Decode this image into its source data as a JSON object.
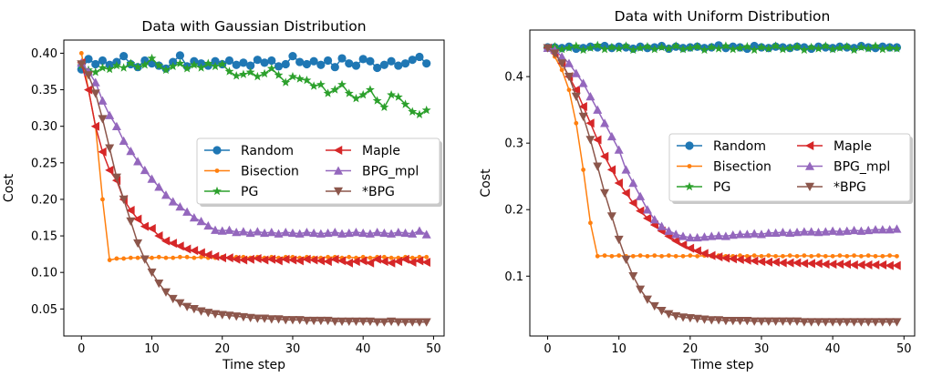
{
  "chart_data": [
    {
      "type": "line",
      "title": "Data with Gaussian Distribution",
      "xlabel": "Time step",
      "ylabel": "Cost",
      "xlim": [
        -2.5,
        51.5
      ],
      "ylim": [
        0.013,
        0.418
      ],
      "xticks": [
        0,
        10,
        20,
        30,
        40,
        50
      ],
      "yticks": [
        0.05,
        0.1,
        0.15,
        0.2,
        0.25,
        0.3,
        0.35,
        0.4
      ],
      "ytick_labels": [
        "0.05",
        "0.10",
        "0.15",
        "0.20",
        "0.25",
        "0.30",
        "0.35",
        "0.40"
      ],
      "legend_position": "center-right",
      "x": [
        0,
        1,
        2,
        3,
        4,
        5,
        6,
        7,
        8,
        9,
        10,
        11,
        12,
        13,
        14,
        15,
        16,
        17,
        18,
        19,
        20,
        21,
        22,
        23,
        24,
        25,
        26,
        27,
        28,
        29,
        30,
        31,
        32,
        33,
        34,
        35,
        36,
        37,
        38,
        39,
        40,
        41,
        42,
        43,
        44,
        45,
        46,
        47,
        48,
        49
      ],
      "series": [
        {
          "name": "Random",
          "color": "#1f77b4",
          "marker": "circle",
          "values": [
            0.378,
            0.392,
            0.385,
            0.39,
            0.384,
            0.388,
            0.396,
            0.385,
            0.381,
            0.39,
            0.386,
            0.383,
            0.379,
            0.388,
            0.397,
            0.382,
            0.389,
            0.386,
            0.383,
            0.389,
            0.385,
            0.39,
            0.384,
            0.387,
            0.383,
            0.391,
            0.387,
            0.39,
            0.382,
            0.385,
            0.396,
            0.388,
            0.385,
            0.389,
            0.384,
            0.39,
            0.381,
            0.393,
            0.386,
            0.383,
            0.392,
            0.389,
            0.38,
            0.384,
            0.389,
            0.383,
            0.386,
            0.391,
            0.395,
            0.386
          ]
        },
        {
          "name": "Bisection",
          "color": "#ff7f0e",
          "marker": "dot",
          "values": [
            0.4,
            0.35,
            0.3,
            0.2,
            0.117,
            0.119,
            0.119,
            0.12,
            0.12,
            0.12,
            0.12,
            0.121,
            0.12,
            0.12,
            0.121,
            0.121,
            0.12,
            0.121,
            0.12,
            0.12,
            0.121,
            0.12,
            0.121,
            0.121,
            0.12,
            0.121,
            0.12,
            0.121,
            0.12,
            0.121,
            0.121,
            0.12,
            0.121,
            0.12,
            0.12,
            0.121,
            0.121,
            0.12,
            0.121,
            0.12,
            0.121,
            0.12,
            0.121,
            0.121,
            0.12,
            0.12,
            0.121,
            0.12,
            0.121,
            0.121
          ]
        },
        {
          "name": "PG",
          "color": "#2ca02c",
          "marker": "star",
          "values": [
            0.383,
            0.377,
            0.374,
            0.38,
            0.378,
            0.383,
            0.38,
            0.386,
            0.381,
            0.384,
            0.393,
            0.383,
            0.377,
            0.382,
            0.386,
            0.379,
            0.384,
            0.38,
            0.386,
            0.382,
            0.385,
            0.375,
            0.369,
            0.371,
            0.374,
            0.368,
            0.372,
            0.379,
            0.37,
            0.36,
            0.368,
            0.365,
            0.363,
            0.355,
            0.357,
            0.345,
            0.35,
            0.357,
            0.345,
            0.338,
            0.343,
            0.35,
            0.335,
            0.326,
            0.343,
            0.34,
            0.33,
            0.32,
            0.316,
            0.322
          ]
        },
        {
          "name": "Maple",
          "color": "#d62728",
          "marker": "triangle-left",
          "values": [
            0.387,
            0.35,
            0.3,
            0.265,
            0.24,
            0.226,
            0.2,
            0.185,
            0.173,
            0.163,
            0.16,
            0.15,
            0.143,
            0.14,
            0.136,
            0.132,
            0.13,
            0.127,
            0.124,
            0.122,
            0.12,
            0.12,
            0.118,
            0.117,
            0.118,
            0.119,
            0.117,
            0.118,
            0.116,
            0.118,
            0.117,
            0.116,
            0.118,
            0.117,
            0.116,
            0.115,
            0.118,
            0.116,
            0.113,
            0.115,
            0.116,
            0.113,
            0.118,
            0.115,
            0.113,
            0.115,
            0.118,
            0.114,
            0.116,
            0.114
          ]
        },
        {
          "name": "BPG_mpl",
          "color": "#9467bd",
          "marker": "triangle-up",
          "values": [
            0.387,
            0.375,
            0.36,
            0.335,
            0.315,
            0.3,
            0.28,
            0.266,
            0.252,
            0.24,
            0.228,
            0.217,
            0.206,
            0.197,
            0.19,
            0.183,
            0.175,
            0.17,
            0.164,
            0.158,
            0.157,
            0.158,
            0.155,
            0.156,
            0.154,
            0.156,
            0.154,
            0.155,
            0.153,
            0.155,
            0.154,
            0.153,
            0.155,
            0.154,
            0.153,
            0.154,
            0.155,
            0.153,
            0.154,
            0.155,
            0.154,
            0.153,
            0.155,
            0.154,
            0.153,
            0.155,
            0.154,
            0.153,
            0.157,
            0.152
          ]
        },
        {
          "name": "*BPG",
          "color": "#8c564b",
          "marker": "triangle-down",
          "values": [
            0.385,
            0.37,
            0.345,
            0.31,
            0.27,
            0.23,
            0.2,
            0.17,
            0.14,
            0.118,
            0.1,
            0.085,
            0.073,
            0.064,
            0.058,
            0.053,
            0.05,
            0.047,
            0.045,
            0.043,
            0.042,
            0.041,
            0.04,
            0.039,
            0.038,
            0.037,
            0.037,
            0.036,
            0.036,
            0.035,
            0.035,
            0.035,
            0.034,
            0.034,
            0.034,
            0.034,
            0.033,
            0.033,
            0.033,
            0.033,
            0.033,
            0.033,
            0.032,
            0.032,
            0.033,
            0.032,
            0.032,
            0.032,
            0.032,
            0.032
          ]
        }
      ]
    },
    {
      "type": "line",
      "title": "Data with Uniform Distribution",
      "xlabel": "Time step",
      "ylabel": "Cost",
      "xlim": [
        -2.5,
        51.5
      ],
      "ylim": [
        0.01,
        0.47
      ],
      "xticks": [
        0,
        10,
        20,
        30,
        40,
        50
      ],
      "yticks": [
        0.1,
        0.2,
        0.3,
        0.4
      ],
      "ytick_labels": [
        "0.1",
        "0.2",
        "0.3",
        "0.4"
      ],
      "legend_position": "center-right",
      "x": [
        0,
        1,
        2,
        3,
        4,
        5,
        6,
        7,
        8,
        9,
        10,
        11,
        12,
        13,
        14,
        15,
        16,
        17,
        18,
        19,
        20,
        21,
        22,
        23,
        24,
        25,
        26,
        27,
        28,
        29,
        30,
        31,
        32,
        33,
        34,
        35,
        36,
        37,
        38,
        39,
        40,
        41,
        42,
        43,
        44,
        45,
        46,
        47,
        48,
        49
      ],
      "series": [
        {
          "name": "Random",
          "color": "#1f77b4",
          "marker": "circle",
          "values": [
            0.444,
            0.444,
            0.443,
            0.445,
            0.442,
            0.443,
            0.445,
            0.444,
            0.446,
            0.443,
            0.445,
            0.444,
            0.442,
            0.445,
            0.443,
            0.444,
            0.446,
            0.442,
            0.445,
            0.443,
            0.444,
            0.445,
            0.443,
            0.444,
            0.447,
            0.443,
            0.445,
            0.444,
            0.442,
            0.446,
            0.444,
            0.443,
            0.445,
            0.444,
            0.443,
            0.445,
            0.444,
            0.442,
            0.445,
            0.444,
            0.443,
            0.445,
            0.444,
            0.443,
            0.446,
            0.444,
            0.443,
            0.445,
            0.444,
            0.444
          ]
        },
        {
          "name": "Bisection",
          "color": "#ff7f0e",
          "marker": "dot",
          "values": [
            0.443,
            0.43,
            0.41,
            0.38,
            0.33,
            0.26,
            0.18,
            0.13,
            0.131,
            0.13,
            0.131,
            0.13,
            0.13,
            0.131,
            0.13,
            0.131,
            0.13,
            0.131,
            0.13,
            0.13,
            0.131,
            0.13,
            0.131,
            0.13,
            0.131,
            0.13,
            0.13,
            0.131,
            0.13,
            0.131,
            0.13,
            0.131,
            0.13,
            0.13,
            0.131,
            0.13,
            0.131,
            0.13,
            0.131,
            0.13,
            0.13,
            0.131,
            0.13,
            0.131,
            0.13,
            0.131,
            0.13,
            0.13,
            0.131,
            0.13
          ]
        },
        {
          "name": "PG",
          "color": "#2ca02c",
          "marker": "star",
          "values": [
            0.443,
            0.445,
            0.441,
            0.443,
            0.446,
            0.44,
            0.443,
            0.447,
            0.441,
            0.444,
            0.442,
            0.446,
            0.44,
            0.443,
            0.445,
            0.441,
            0.444,
            0.442,
            0.446,
            0.441,
            0.443,
            0.445,
            0.44,
            0.444,
            0.442,
            0.446,
            0.441,
            0.443,
            0.445,
            0.44,
            0.444,
            0.442,
            0.446,
            0.441,
            0.443,
            0.445,
            0.44,
            0.444,
            0.442,
            0.446,
            0.441,
            0.443,
            0.445,
            0.44,
            0.444,
            0.442,
            0.446,
            0.441,
            0.443,
            0.442
          ]
        },
        {
          "name": "Maple",
          "color": "#d62728",
          "marker": "triangle-left",
          "values": [
            0.443,
            0.435,
            0.42,
            0.4,
            0.38,
            0.355,
            0.33,
            0.305,
            0.28,
            0.26,
            0.24,
            0.225,
            0.21,
            0.198,
            0.187,
            0.177,
            0.168,
            0.16,
            0.153,
            0.147,
            0.142,
            0.138,
            0.134,
            0.131,
            0.129,
            0.127,
            0.126,
            0.125,
            0.124,
            0.123,
            0.122,
            0.121,
            0.121,
            0.12,
            0.12,
            0.12,
            0.119,
            0.119,
            0.119,
            0.118,
            0.118,
            0.118,
            0.118,
            0.117,
            0.117,
            0.117,
            0.117,
            0.117,
            0.116,
            0.116
          ]
        },
        {
          "name": "BPG_mpl",
          "color": "#9467bd",
          "marker": "triangle-up",
          "values": [
            0.443,
            0.44,
            0.43,
            0.42,
            0.405,
            0.39,
            0.37,
            0.35,
            0.33,
            0.31,
            0.29,
            0.26,
            0.24,
            0.22,
            0.2,
            0.185,
            0.175,
            0.168,
            0.163,
            0.16,
            0.158,
            0.158,
            0.159,
            0.16,
            0.161,
            0.16,
            0.162,
            0.163,
            0.163,
            0.164,
            0.163,
            0.165,
            0.165,
            0.166,
            0.165,
            0.166,
            0.167,
            0.167,
            0.166,
            0.167,
            0.168,
            0.167,
            0.168,
            0.169,
            0.168,
            0.169,
            0.17,
            0.17,
            0.17,
            0.171
          ]
        },
        {
          "name": "*BPG",
          "color": "#8c564b",
          "marker": "triangle-down",
          "values": [
            0.443,
            0.435,
            0.42,
            0.4,
            0.37,
            0.34,
            0.305,
            0.265,
            0.225,
            0.19,
            0.155,
            0.125,
            0.1,
            0.08,
            0.065,
            0.055,
            0.048,
            0.043,
            0.04,
            0.038,
            0.037,
            0.036,
            0.035,
            0.034,
            0.034,
            0.033,
            0.033,
            0.033,
            0.033,
            0.032,
            0.032,
            0.032,
            0.032,
            0.032,
            0.032,
            0.032,
            0.031,
            0.031,
            0.031,
            0.031,
            0.031,
            0.031,
            0.031,
            0.031,
            0.031,
            0.031,
            0.031,
            0.031,
            0.031,
            0.031
          ]
        }
      ]
    }
  ]
}
